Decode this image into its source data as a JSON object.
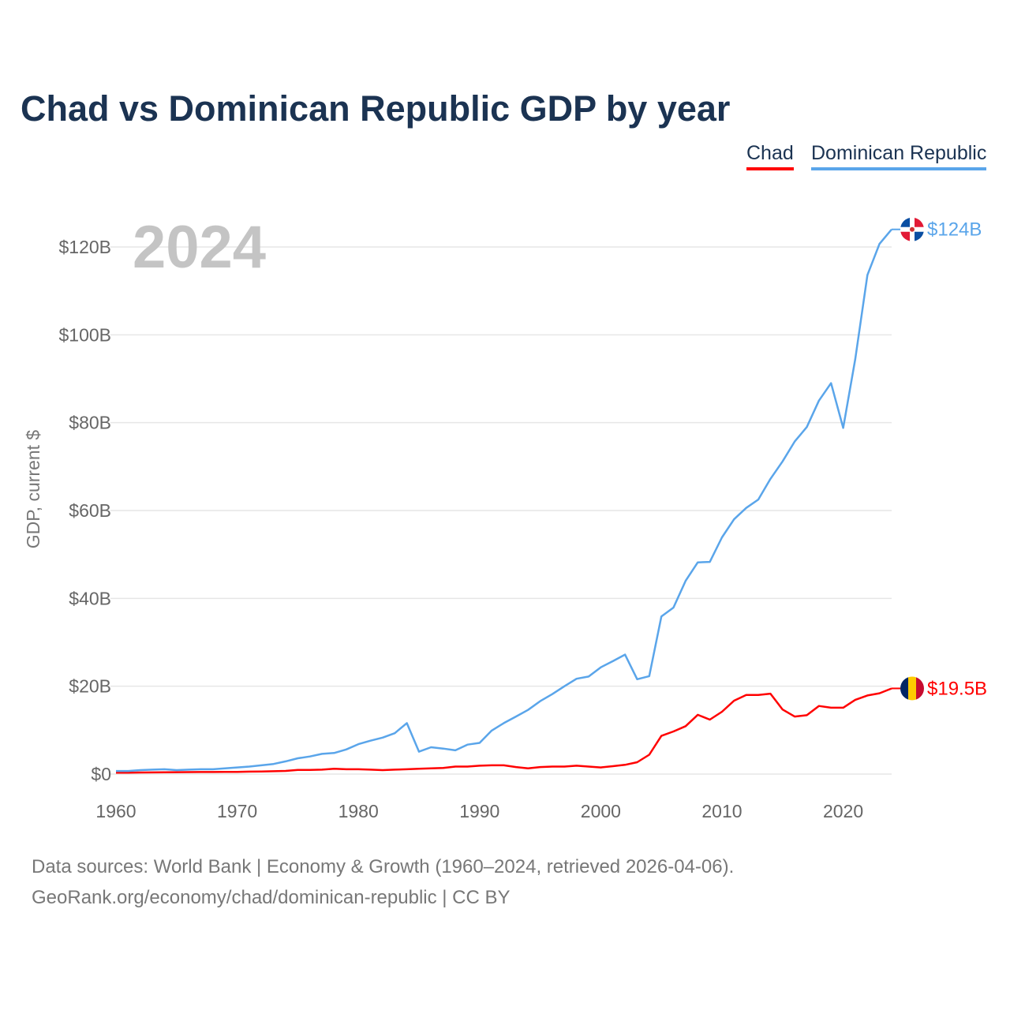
{
  "chart_data": {
    "type": "line",
    "title": "Chad vs Dominican Republic GDP by year",
    "ylabel": "GDP, current $",
    "xlabel": "",
    "xlim": [
      1960,
      2024
    ],
    "ylim": [
      0,
      125
    ],
    "x_ticks": [
      1960,
      1970,
      1980,
      1990,
      2000,
      2010,
      2020
    ],
    "x_tick_labels": [
      "1960",
      "1970",
      "1980",
      "1990",
      "2000",
      "2010",
      "2020"
    ],
    "y_ticks": [
      0,
      20,
      40,
      60,
      80,
      100,
      120
    ],
    "y_tick_labels": [
      "$0",
      "$20B",
      "$40B",
      "$60B",
      "$80B",
      "$100B",
      "$120B"
    ],
    "grid": true,
    "legend_position": "top-right",
    "year_watermark": "2024",
    "x": [
      1960,
      1961,
      1962,
      1963,
      1964,
      1965,
      1966,
      1967,
      1968,
      1969,
      1970,
      1971,
      1972,
      1973,
      1974,
      1975,
      1976,
      1977,
      1978,
      1979,
      1980,
      1981,
      1982,
      1983,
      1984,
      1985,
      1986,
      1987,
      1988,
      1989,
      1990,
      1991,
      1992,
      1993,
      1994,
      1995,
      1996,
      1997,
      1998,
      1999,
      2000,
      2001,
      2002,
      2003,
      2004,
      2005,
      2006,
      2007,
      2008,
      2009,
      2010,
      2011,
      2012,
      2013,
      2014,
      2015,
      2016,
      2017,
      2018,
      2019,
      2020,
      2021,
      2022,
      2023,
      2024
    ],
    "series": [
      {
        "name": "Chad",
        "color": "#ff0000",
        "end_label": "$19.5B",
        "flag": "chad-flag",
        "values": [
          0.31,
          0.33,
          0.36,
          0.38,
          0.41,
          0.43,
          0.45,
          0.46,
          0.47,
          0.49,
          0.5,
          0.55,
          0.6,
          0.65,
          0.72,
          0.95,
          0.96,
          1.0,
          1.2,
          1.1,
          1.1,
          1.0,
          0.9,
          1.0,
          1.1,
          1.2,
          1.3,
          1.4,
          1.7,
          1.7,
          1.9,
          2.0,
          2.0,
          1.6,
          1.3,
          1.6,
          1.7,
          1.7,
          1.9,
          1.7,
          1.5,
          1.8,
          2.1,
          2.7,
          4.4,
          8.7,
          9.7,
          10.9,
          13.5,
          12.4,
          14.2,
          16.7,
          18.0,
          18.0,
          18.3,
          14.7,
          13.1,
          13.4,
          15.5,
          15.1,
          15.1,
          16.9,
          17.9,
          18.4,
          19.5
        ]
      },
      {
        "name": "Dominican Republic",
        "color": "#5aa5ea",
        "end_label": "$124B",
        "flag": "dominican-republic-flag",
        "values": [
          0.7,
          0.7,
          0.9,
          1.0,
          1.1,
          0.9,
          1.0,
          1.1,
          1.1,
          1.3,
          1.5,
          1.7,
          2.0,
          2.3,
          2.9,
          3.6,
          4.0,
          4.6,
          4.8,
          5.6,
          6.8,
          7.6,
          8.3,
          9.3,
          11.6,
          5.1,
          6.1,
          5.8,
          5.4,
          6.7,
          7.1,
          9.9,
          11.6,
          13.1,
          14.6,
          16.6,
          18.2,
          20.0,
          21.7,
          22.2,
          24.3,
          25.7,
          27.2,
          21.6,
          22.3,
          35.9,
          37.9,
          44.0,
          48.2,
          48.3,
          53.9,
          58.0,
          60.6,
          62.5,
          67.2,
          71.2,
          75.7,
          79.0,
          85.0,
          89.0,
          78.8,
          94.5,
          113.6,
          120.7,
          124.0
        ]
      }
    ]
  },
  "legend": {
    "chad": "Chad",
    "dr": "Dominican Republic"
  },
  "footer": {
    "line1": "Data sources: World Bank | Economy & Growth (1960–2024, retrieved 2026-04-06).",
    "line2": "GeoRank.org/economy/chad/dominican-republic | CC BY"
  }
}
